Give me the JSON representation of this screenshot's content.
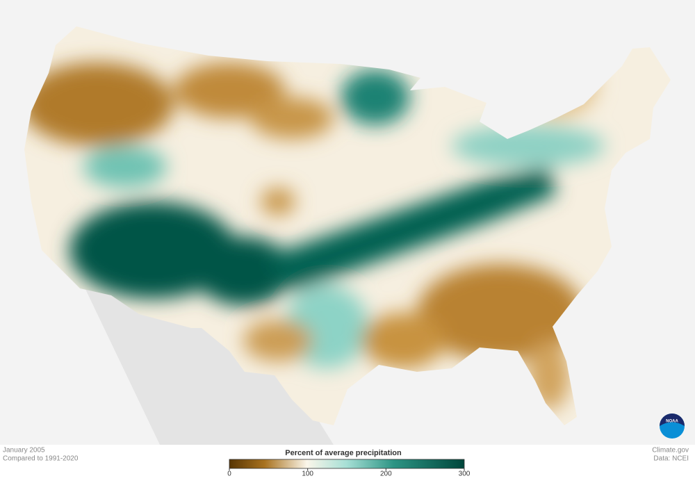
{
  "caption": {
    "date": "January 2005",
    "baseline": "Compared to 1991-2020"
  },
  "credit": {
    "site": "Climate.gov",
    "source": "Data: NCEI"
  },
  "logo": "NOAA",
  "legend": {
    "title": "Percent of average precipitation",
    "range": [
      0,
      300
    ],
    "ticks": [
      0,
      100,
      200,
      300
    ]
  }
}
